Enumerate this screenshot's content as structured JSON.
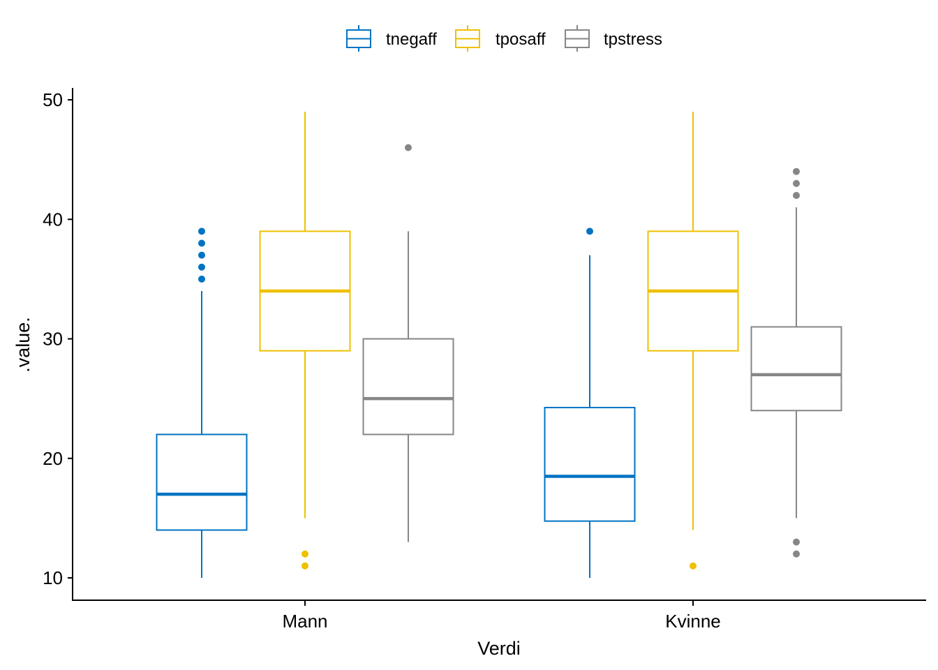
{
  "chart_data": {
    "type": "box",
    "title": "",
    "xlabel": "Verdi",
    "ylabel": ".value.",
    "ylim": [
      9,
      51
    ],
    "yticks": [
      10,
      20,
      30,
      40,
      50
    ],
    "grid": false,
    "legend_position": "top",
    "categories": [
      "Mann",
      "Kvinne"
    ],
    "series": [
      {
        "name": "tnegaff",
        "color": "#0073C2",
        "boxes": [
          {
            "category": "Mann",
            "whisker_low": 10,
            "q1": 14,
            "median": 17,
            "q3": 22,
            "whisker_high": 34,
            "outliers": [
              35,
              36,
              37,
              38,
              39
            ]
          },
          {
            "category": "Kvinne",
            "whisker_low": 10,
            "q1": 14.75,
            "median": 18.5,
            "q3": 24.25,
            "whisker_high": 37,
            "outliers": [
              39
            ]
          }
        ]
      },
      {
        "name": "tposaff",
        "color": "#EFC000",
        "boxes": [
          {
            "category": "Mann",
            "whisker_low": 15,
            "q1": 29,
            "median": 34,
            "q3": 39,
            "whisker_high": 49,
            "outliers": [
              11,
              12
            ]
          },
          {
            "category": "Kvinne",
            "whisker_low": 14,
            "q1": 29,
            "median": 34,
            "q3": 39,
            "whisker_high": 49,
            "outliers": [
              11
            ]
          }
        ]
      },
      {
        "name": "tpstress",
        "color": "#868686",
        "boxes": [
          {
            "category": "Mann",
            "whisker_low": 13,
            "q1": 22,
            "median": 25,
            "q3": 30,
            "whisker_high": 39,
            "outliers": [
              46
            ]
          },
          {
            "category": "Kvinne",
            "whisker_low": 15,
            "q1": 24,
            "median": 27,
            "q3": 31,
            "whisker_high": 41,
            "outliers": [
              12,
              13,
              42,
              43,
              44
            ]
          }
        ]
      }
    ]
  }
}
